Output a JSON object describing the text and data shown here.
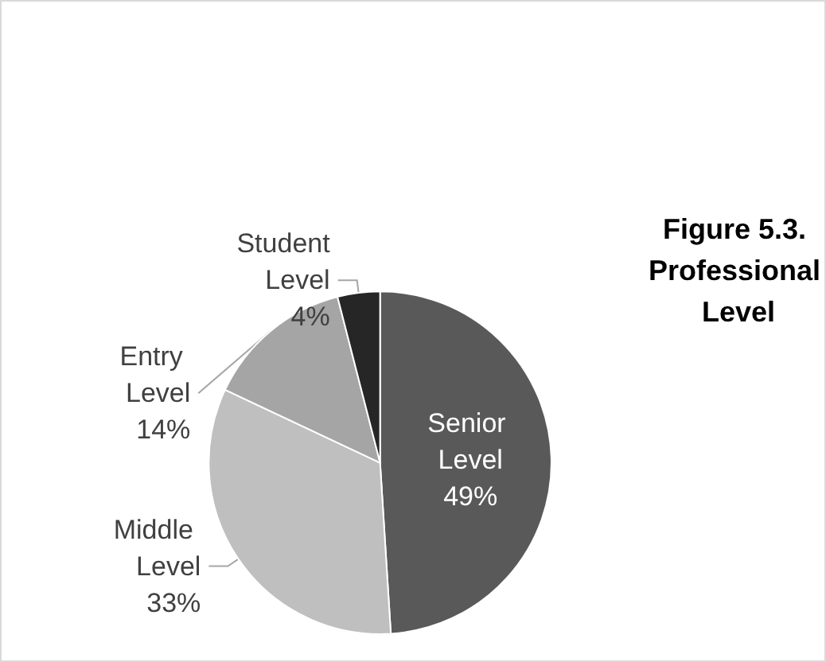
{
  "chart_data": {
    "type": "pie",
    "title": "Figure 5.3. Professional Level",
    "categories": [
      "Senior Level",
      "Middle Level",
      "Entry Level",
      "Student Level"
    ],
    "values": [
      49,
      33,
      14,
      4
    ],
    "value_labels": [
      "49%",
      "33%",
      "14%",
      "4%"
    ],
    "colors": [
      "#595959",
      "#bfbfbf",
      "#a5a5a5",
      "#262626"
    ],
    "legend": false
  }
}
